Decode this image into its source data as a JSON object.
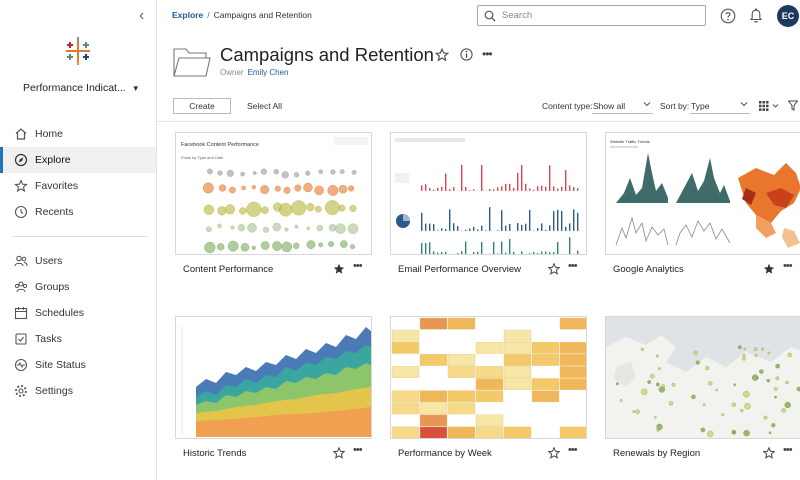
{
  "sidebar": {
    "site_name": "Performance Indicat...",
    "nav_top": [
      {
        "label": "Home",
        "icon": "home-icon"
      },
      {
        "label": "Explore",
        "icon": "explore-icon",
        "active": true
      },
      {
        "label": "Favorites",
        "icon": "star-icon"
      },
      {
        "label": "Recents",
        "icon": "clock-icon"
      }
    ],
    "nav_bottom": [
      {
        "label": "Users",
        "icon": "users-icon"
      },
      {
        "label": "Groups",
        "icon": "groups-icon"
      },
      {
        "label": "Schedules",
        "icon": "calendar-icon"
      },
      {
        "label": "Tasks",
        "icon": "tasks-icon"
      },
      {
        "label": "Site Status",
        "icon": "pulse-icon"
      },
      {
        "label": "Settings",
        "icon": "gear-icon"
      }
    ]
  },
  "topbar": {
    "breadcrumb_root": "Explore",
    "breadcrumb_current": "Campaigns and Retention",
    "search_placeholder": "Search",
    "avatar_initials": "EC"
  },
  "header": {
    "title": "Campaigns and Retention",
    "owner_label": "Owner",
    "owner_name": "Emily Chen"
  },
  "toolbar": {
    "create_label": "Create",
    "select_all_label": "Select All",
    "content_type_label": "Content type:",
    "content_type_value": "Show all",
    "sort_label": "Sort by:",
    "sort_value": "Type"
  },
  "cards": [
    {
      "label": "Content Performance",
      "favorite": true,
      "thumb_title": "Facebook Content Performance",
      "thumb_subtitle": "Posts by Type and Date"
    },
    {
      "label": "Email Performance Overview",
      "favorite": false
    },
    {
      "label": "Google Analytics",
      "favorite": true,
      "thumb_title": "Website Traffic Trends"
    },
    {
      "label": "Historic Trends",
      "favorite": false
    },
    {
      "label": "Performance by Week",
      "favorite": false
    },
    {
      "label": "Renewals by Region",
      "favorite": false
    }
  ],
  "colors": {
    "accent": "#1f77b4",
    "link": "#1f5a99",
    "avatar_bg": "#1e3a5c"
  }
}
